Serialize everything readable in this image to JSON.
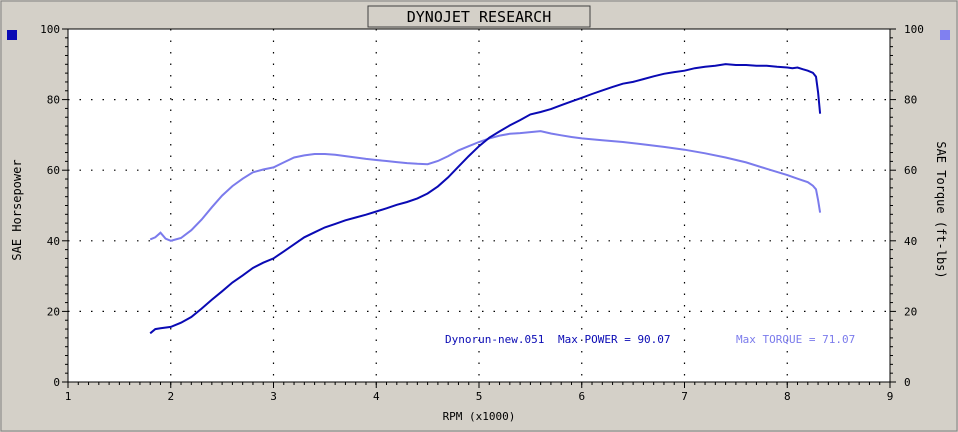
{
  "chart_data": {
    "type": "line",
    "title": "DYNOJET RESEARCH",
    "xlabel": "RPM (x1000)",
    "ylabel_left": "SAE Horsepower",
    "ylabel_right": "SAE Torque (ft-lbs)",
    "xlim": [
      1,
      9
    ],
    "ylim": [
      0,
      100
    ],
    "x_ticks": [
      "1",
      "2",
      "3",
      "4",
      "5",
      "6",
      "7",
      "8",
      "9"
    ],
    "y_ticks": [
      "0",
      "20",
      "40",
      "60",
      "80",
      "100"
    ],
    "grid": true,
    "colors": {
      "power": "#0a0ab4",
      "torque": "#7b7bec"
    },
    "series": [
      {
        "name": "Max POWER",
        "x": [
          1.8,
          1.85,
          1.9,
          2.0,
          2.1,
          2.2,
          2.3,
          2.4,
          2.5,
          2.6,
          2.7,
          2.8,
          2.9,
          3.0,
          3.1,
          3.2,
          3.3,
          3.4,
          3.5,
          3.6,
          3.7,
          3.8,
          3.9,
          4.0,
          4.1,
          4.2,
          4.3,
          4.4,
          4.5,
          4.6,
          4.7,
          4.8,
          4.9,
          5.0,
          5.1,
          5.2,
          5.3,
          5.4,
          5.5,
          5.6,
          5.7,
          5.8,
          5.9,
          6.0,
          6.1,
          6.2,
          6.3,
          6.4,
          6.5,
          6.6,
          6.7,
          6.8,
          6.9,
          7.0,
          7.1,
          7.2,
          7.3,
          7.4,
          7.5,
          7.6,
          7.7,
          7.8,
          7.9,
          8.0,
          8.05,
          8.1,
          8.15,
          8.2,
          8.25,
          8.28,
          8.3,
          8.32
        ],
        "y": [
          13.8,
          15.0,
          15.2,
          15.6,
          16.8,
          18.4,
          20.8,
          23.3,
          25.7,
          28.2,
          30.2,
          32.3,
          33.8,
          35.0,
          37.0,
          39.0,
          41.0,
          42.4,
          43.8,
          44.8,
          45.8,
          46.6,
          47.4,
          48.3,
          49.2,
          50.2,
          51.0,
          52.0,
          53.4,
          55.4,
          58.0,
          61.0,
          64.0,
          66.8,
          69.2,
          71.0,
          72.7,
          74.2,
          75.8,
          76.5,
          77.3,
          78.4,
          79.5,
          80.5,
          81.6,
          82.6,
          83.6,
          84.5,
          85.0,
          85.8,
          86.6,
          87.3,
          87.8,
          88.2,
          88.9,
          89.3,
          89.6,
          90.07,
          89.8,
          89.8,
          89.6,
          89.6,
          89.3,
          89.1,
          88.9,
          89.1,
          88.6,
          88.2,
          87.6,
          86.5,
          82.0,
          76.0
        ]
      },
      {
        "name": "Max TORQUE",
        "x": [
          1.8,
          1.85,
          1.9,
          1.95,
          2.0,
          2.05,
          2.1,
          2.2,
          2.3,
          2.4,
          2.5,
          2.6,
          2.7,
          2.8,
          2.9,
          3.0,
          3.1,
          3.2,
          3.3,
          3.4,
          3.5,
          3.6,
          3.7,
          3.8,
          3.9,
          4.0,
          4.1,
          4.2,
          4.3,
          4.4,
          4.5,
          4.6,
          4.7,
          4.8,
          4.9,
          5.0,
          5.1,
          5.2,
          5.3,
          5.4,
          5.5,
          5.6,
          5.7,
          5.8,
          5.9,
          6.0,
          6.2,
          6.4,
          6.6,
          6.8,
          7.0,
          7.2,
          7.4,
          7.6,
          7.8,
          8.0,
          8.1,
          8.2,
          8.25,
          8.28,
          8.3,
          8.32
        ],
        "y": [
          40.4,
          41.0,
          42.3,
          40.6,
          40.0,
          40.4,
          40.8,
          43.0,
          46.0,
          49.5,
          52.8,
          55.5,
          57.6,
          59.4,
          60.2,
          60.8,
          62.2,
          63.6,
          64.2,
          64.6,
          64.6,
          64.4,
          64.0,
          63.6,
          63.2,
          62.9,
          62.6,
          62.3,
          62.0,
          61.8,
          61.7,
          62.6,
          64.0,
          65.6,
          66.8,
          68.0,
          69.0,
          69.8,
          70.3,
          70.5,
          70.8,
          71.07,
          70.4,
          69.9,
          69.4,
          69.0,
          68.5,
          68.0,
          67.3,
          66.6,
          65.8,
          64.8,
          63.6,
          62.2,
          60.4,
          58.6,
          57.6,
          56.6,
          55.6,
          54.6,
          51.5,
          48.0
        ]
      }
    ],
    "annotation": {
      "run": "Dynorun-new.051",
      "power_text": "Max POWER = 90.07",
      "torque_text": "Max TORQUE = 71.07"
    }
  }
}
